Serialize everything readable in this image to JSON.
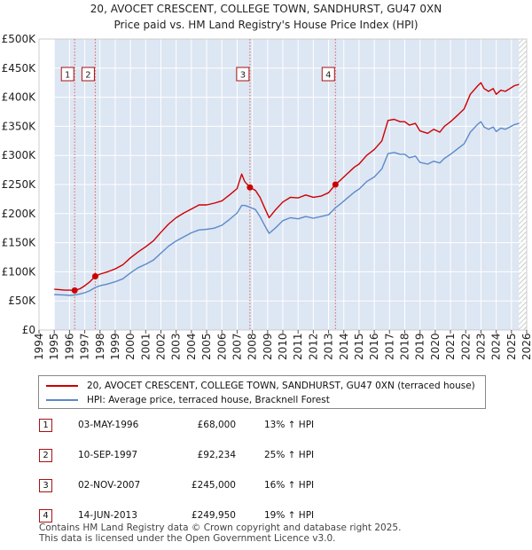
{
  "chart_data": {
    "type": "line",
    "title": "20, AVOCET CRESCENT, COLLEGE TOWN, SANDHURST, GU47 0XN",
    "subtitle": "Price paid vs. HM Land Registry's House Price Index (HPI)",
    "xlabel": "",
    "ylabel": "",
    "xlim": [
      1994.0,
      2026.0
    ],
    "ylim": [
      0,
      500000
    ],
    "grid": true,
    "y_ticks": [
      {
        "value": 0,
        "label": "£0"
      },
      {
        "value": 50000,
        "label": "£50K"
      },
      {
        "value": 100000,
        "label": "£100K"
      },
      {
        "value": 150000,
        "label": "£150K"
      },
      {
        "value": 200000,
        "label": "£200K"
      },
      {
        "value": 250000,
        "label": "£250K"
      },
      {
        "value": 300000,
        "label": "£300K"
      },
      {
        "value": 350000,
        "label": "£350K"
      },
      {
        "value": 400000,
        "label": "£400K"
      },
      {
        "value": 450000,
        "label": "£450K"
      },
      {
        "value": 500000,
        "label": "£500K"
      }
    ],
    "x_ticks": [
      "1994",
      "1995",
      "1996",
      "1997",
      "1998",
      "1999",
      "2000",
      "2001",
      "2002",
      "2003",
      "2004",
      "2005",
      "2006",
      "2007",
      "2008",
      "2009",
      "2010",
      "2011",
      "2012",
      "2013",
      "2014",
      "2015",
      "2016",
      "2017",
      "2018",
      "2019",
      "2020",
      "2021",
      "2022",
      "2023",
      "2024",
      "2025",
      "2026"
    ],
    "data_start": 1995.0,
    "data_end": 2025.5,
    "series": [
      {
        "name": "20, AVOCET CRESCENT, COLLEGE TOWN, SANDHURST, GU47 0XN (terraced house)",
        "color": "#cc0000",
        "points": [
          [
            1995.0,
            70000
          ],
          [
            1995.3,
            69500
          ],
          [
            1995.7,
            68500
          ],
          [
            1996.0,
            68500
          ],
          [
            1996.34,
            68000
          ],
          [
            1996.7,
            71000
          ],
          [
            1997.0,
            76000
          ],
          [
            1997.3,
            82000
          ],
          [
            1997.69,
            92234
          ],
          [
            1998.0,
            96000
          ],
          [
            1998.5,
            100000
          ],
          [
            1999.0,
            105000
          ],
          [
            1999.5,
            112000
          ],
          [
            2000.0,
            124000
          ],
          [
            2000.5,
            134000
          ],
          [
            2001.0,
            143000
          ],
          [
            2001.5,
            153000
          ],
          [
            2002.0,
            168000
          ],
          [
            2002.5,
            182000
          ],
          [
            2003.0,
            193000
          ],
          [
            2003.5,
            201000
          ],
          [
            2004.0,
            208000
          ],
          [
            2004.5,
            215000
          ],
          [
            2005.0,
            215000
          ],
          [
            2005.5,
            218000
          ],
          [
            2006.0,
            222000
          ],
          [
            2006.5,
            232000
          ],
          [
            2007.0,
            243000
          ],
          [
            2007.3,
            268000
          ],
          [
            2007.5,
            255000
          ],
          [
            2007.84,
            245000
          ],
          [
            2008.2,
            240000
          ],
          [
            2008.5,
            228000
          ],
          [
            2008.8,
            210000
          ],
          [
            2009.1,
            193000
          ],
          [
            2009.5,
            206000
          ],
          [
            2010.0,
            220000
          ],
          [
            2010.5,
            228000
          ],
          [
            2011.0,
            227000
          ],
          [
            2011.5,
            232000
          ],
          [
            2012.0,
            228000
          ],
          [
            2012.5,
            230000
          ],
          [
            2013.0,
            236000
          ],
          [
            2013.45,
            249950
          ],
          [
            2013.8,
            258000
          ],
          [
            2014.2,
            268000
          ],
          [
            2014.7,
            280000
          ],
          [
            2015.0,
            285000
          ],
          [
            2015.5,
            300000
          ],
          [
            2016.0,
            310000
          ],
          [
            2016.5,
            325000
          ],
          [
            2016.9,
            360000
          ],
          [
            2017.3,
            362000
          ],
          [
            2017.7,
            358000
          ],
          [
            2018.0,
            358000
          ],
          [
            2018.3,
            352000
          ],
          [
            2018.7,
            355000
          ],
          [
            2019.0,
            342000
          ],
          [
            2019.5,
            338000
          ],
          [
            2019.9,
            345000
          ],
          [
            2020.3,
            340000
          ],
          [
            2020.6,
            350000
          ],
          [
            2021.0,
            358000
          ],
          [
            2021.5,
            370000
          ],
          [
            2021.9,
            380000
          ],
          [
            2022.3,
            405000
          ],
          [
            2022.8,
            420000
          ],
          [
            2023.0,
            425000
          ],
          [
            2023.2,
            415000
          ],
          [
            2023.5,
            410000
          ],
          [
            2023.8,
            415000
          ],
          [
            2024.0,
            405000
          ],
          [
            2024.3,
            412000
          ],
          [
            2024.6,
            410000
          ],
          [
            2024.9,
            415000
          ],
          [
            2025.2,
            420000
          ],
          [
            2025.5,
            422000
          ]
        ]
      },
      {
        "name": "HPI: Average price, terraced house, Bracknell Forest",
        "color": "#5b8ac9",
        "points": [
          [
            1995.0,
            61000
          ],
          [
            1995.3,
            60500
          ],
          [
            1995.7,
            60000
          ],
          [
            1996.0,
            59500
          ],
          [
            1996.34,
            60000
          ],
          [
            1996.7,
            62000
          ],
          [
            1997.0,
            64000
          ],
          [
            1997.3,
            67000
          ],
          [
            1997.69,
            73000
          ],
          [
            1998.0,
            76000
          ],
          [
            1998.5,
            79000
          ],
          [
            1999.0,
            83000
          ],
          [
            1999.5,
            88000
          ],
          [
            2000.0,
            98000
          ],
          [
            2000.5,
            107000
          ],
          [
            2001.0,
            113000
          ],
          [
            2001.5,
            120000
          ],
          [
            2002.0,
            132000
          ],
          [
            2002.5,
            144000
          ],
          [
            2003.0,
            153000
          ],
          [
            2003.5,
            160000
          ],
          [
            2004.0,
            167000
          ],
          [
            2004.5,
            172000
          ],
          [
            2005.0,
            173000
          ],
          [
            2005.5,
            175000
          ],
          [
            2006.0,
            180000
          ],
          [
            2006.5,
            190000
          ],
          [
            2007.0,
            201000
          ],
          [
            2007.3,
            214000
          ],
          [
            2007.5,
            214000
          ],
          [
            2007.84,
            211000
          ],
          [
            2008.2,
            207000
          ],
          [
            2008.5,
            195000
          ],
          [
            2008.8,
            180000
          ],
          [
            2009.1,
            166000
          ],
          [
            2009.5,
            175000
          ],
          [
            2010.0,
            188000
          ],
          [
            2010.5,
            193000
          ],
          [
            2011.0,
            191000
          ],
          [
            2011.5,
            195000
          ],
          [
            2012.0,
            192000
          ],
          [
            2012.5,
            195000
          ],
          [
            2013.0,
            198000
          ],
          [
            2013.45,
            210000
          ],
          [
            2013.8,
            217000
          ],
          [
            2014.2,
            226000
          ],
          [
            2014.7,
            237000
          ],
          [
            2015.0,
            242000
          ],
          [
            2015.5,
            255000
          ],
          [
            2016.0,
            263000
          ],
          [
            2016.5,
            277000
          ],
          [
            2016.9,
            303000
          ],
          [
            2017.3,
            305000
          ],
          [
            2017.7,
            302000
          ],
          [
            2018.0,
            302000
          ],
          [
            2018.3,
            296000
          ],
          [
            2018.7,
            299000
          ],
          [
            2019.0,
            288000
          ],
          [
            2019.5,
            285000
          ],
          [
            2019.9,
            290000
          ],
          [
            2020.3,
            287000
          ],
          [
            2020.6,
            295000
          ],
          [
            2021.0,
            302000
          ],
          [
            2021.5,
            312000
          ],
          [
            2021.9,
            320000
          ],
          [
            2022.3,
            340000
          ],
          [
            2022.8,
            354000
          ],
          [
            2023.0,
            358000
          ],
          [
            2023.2,
            349000
          ],
          [
            2023.5,
            345000
          ],
          [
            2023.8,
            349000
          ],
          [
            2024.0,
            341000
          ],
          [
            2024.3,
            347000
          ],
          [
            2024.6,
            345000
          ],
          [
            2024.9,
            349000
          ],
          [
            2025.2,
            353000
          ],
          [
            2025.5,
            355000
          ]
        ]
      }
    ],
    "transactions": [
      {
        "id": "1",
        "x": 1996.34,
        "price": 68000,
        "date": "03-MAY-1996",
        "price_label": "£68,000",
        "hpi": "13% ↑ HPI"
      },
      {
        "id": "2",
        "x": 1997.69,
        "price": 92234,
        "date": "10-SEP-1997",
        "price_label": "£92,234",
        "hpi": "25% ↑ HPI"
      },
      {
        "id": "3",
        "x": 2007.84,
        "price": 245000,
        "date": "02-NOV-2007",
        "price_label": "£245,000",
        "hpi": "16% ↑ HPI"
      },
      {
        "id": "4",
        "x": 2013.45,
        "price": 249950,
        "date": "14-JUN-2013",
        "price_label": "£249,950",
        "hpi": "19% ↑ HPI"
      }
    ],
    "legend": [
      "20, AVOCET CRESCENT, COLLEGE TOWN, SANDHURST, GU47 0XN (terraced house)",
      "HPI: Average price, terraced house, Bracknell Forest"
    ],
    "legend_position": "bottom"
  },
  "colors": {
    "property_line": "#cc0000",
    "hpi_line": "#5b8ac9",
    "shade": "#dde6f3",
    "marker_box": "#aa1111"
  },
  "footer": {
    "line1": "Contains HM Land Registry data © Crown copyright and database right 2025.",
    "line2": "This data is licensed under the Open Government Licence v3.0."
  }
}
